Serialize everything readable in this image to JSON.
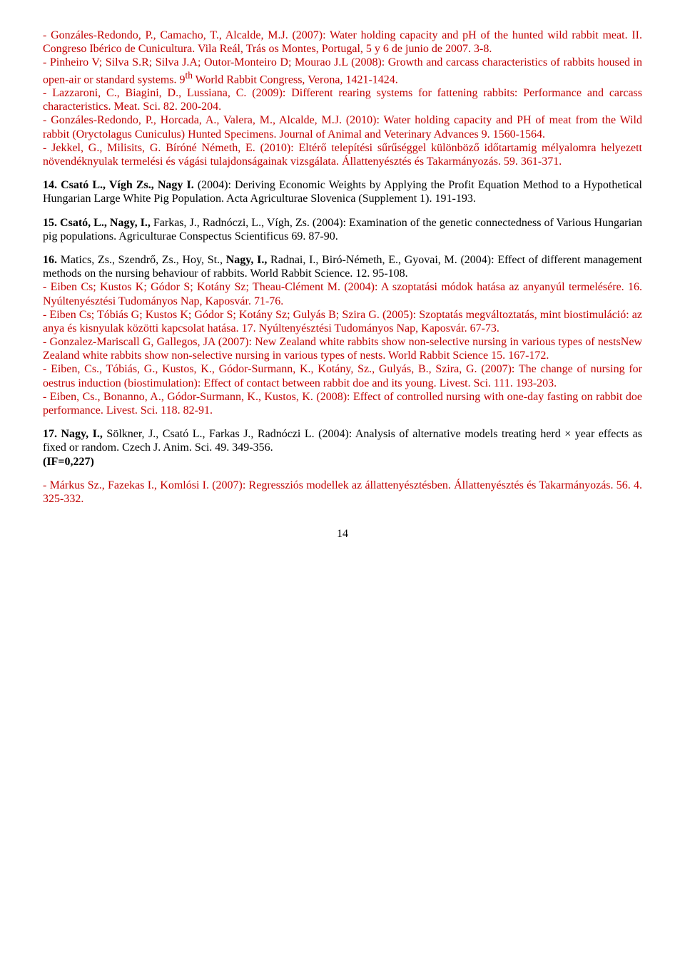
{
  "p1a": "- Gonzáles-Redondo, P., Camacho, T., Alcalde, M.J. (2007): Water holding capacity and pH of the hunted wild rabbit meat. II. Congreso Ibérico de Cunicultura. Vila Reál, Trás os Montes, Portugal, 5 y 6 de junio de 2007. 3-8.",
  "p1b": "- Pinheiro V; Silva S.R; Silva J.A; Outor-Monteiro D; Mourao J.L (2008): Growth and carcass characteristics of rabbits housed in open-air or standard systems. 9",
  "p1b_sup": "th",
  "p1b_tail": " World Rabbit Congress, Verona, 1421-1424.",
  "p1c": "- Lazzaroni, C., Biagini, D., Lussiana, C. (2009): Different rearing systems for fattening rabbits: Performance and carcass characteristics. Meat. Sci. 82. 200-204.",
  "p1d": "- Gonzáles-Redondo, P., Horcada, A., Valera, M., Alcalde, M.J. (2010): Water holding capacity and PH of meat from the Wild rabbit (Oryctolagus Cuniculus) Hunted Specimens. Journal of Animal and Veterinary Advances 9. 1560-1564.",
  "p1e": "- Jekkel, G., Milisits, G. Bíróné Németh, E. (2010): Eltérő telepítési sűrűséggel különböző időtartamig mélyalomra helyezett növendéknyulak termelési és vágási tulajdonságainak vizsgálata. Állattenyésztés és Takarmányozás. 59. 361-371.",
  "p2_head": "14. Csató L., Vígh Zs., Nagy I.",
  "p2_tail": " (2004): Deriving Economic Weights by Applying the Profit Equation Method to a Hypothetical Hungarian Large White Pig Population. Acta Agriculturae Slovenica (Supplement 1). 191-193.",
  "p3_head": "15. Csató, L., Nagy, I.,",
  "p3_tail": " Farkas, J., Radnóczi, L., Vígh, Zs. (2004): Examination of the genetic connectedness of Various Hungarian pig populations. Agriculturae Conspectus Scientificus 69. 87-90.",
  "p4_head1": "16.",
  "p4_mid1": " Matics, Zs., Szendrő, Zs., Hoy, St., ",
  "p4_head2": "Nagy, I.,",
  "p4_tail": " Radnai, I., Biró-Németh, E., Gyovai, M. (2004): Effect of different management methods on the nursing behaviour of rabbits. World Rabbit Science. 12. 95-108.",
  "p4a": "- Eiben Cs; Kustos K; Gódor S; Kotány Sz; Theau-Clément M. (2004): A szoptatási módok hatása az anyanyúl termelésére. 16. Nyúltenyésztési Tudományos Nap, Kaposvár. 71-76.",
  "p4b": "- Eiben Cs; Tóbiás G; Kustos K; Gódor S; Kotány Sz; Gulyás B; Szira G. (2005): Szoptatás megváltoztatás, mint biostimuláció: az anya és kisnyulak közötti kapcsolat hatása. 17. Nyúltenyésztési Tudományos Nap, Kaposvár. 67-73.",
  "p4c": "- Gonzalez-Mariscall G, Gallegos, JA (2007): New Zealand white rabbits show non-selective nursing in various types of nestsNew Zealand white rabbits show non-selective nursing in various types of nests. World Rabbit Science 15. 167-172.",
  "p4d": "- Eiben, Cs., Tóbiás, G., Kustos, K., Gódor-Surmann, K., Kotány, Sz., Gulyás, B., Szira, G. (2007): The change of nursing for oestrus induction (biostimulation): Effect of contact between rabbit doe and its young. Livest. Sci. 111. 193-203.",
  "p4e": "- Eiben, Cs., Bonanno, A., Gódor-Surmann, K., Kustos, K. (2008): Effect of controlled nursing with one-day fasting on rabbit doe performance. Livest. Sci. 118. 82-91.",
  "p5_head": "17. Nagy, I.,",
  "p5_tail1": " Sölkner, J., Csató L., Farkas J., Radnóczi L. (2004): Analysis of alternative models treating herd × year effects as fixed or random. Czech J. Anim. Sci. 49. 349-356.",
  "p5_if": "(IF=0,227)",
  "p6": "- Márkus Sz., Fazekas I., Komlósi I. (2007): Regressziós modellek az állattenyésztésben. Állattenyésztés és Takarmányozás. 56. 4. 325-332.",
  "pagenum": "14"
}
